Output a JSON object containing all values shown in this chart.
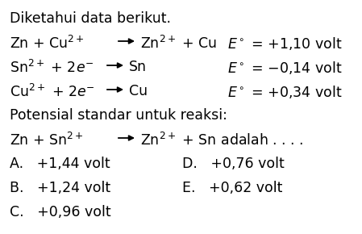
{
  "background_color": "#ffffff",
  "text_color": "#000000",
  "fontsize": 12.5,
  "line0": "Diketahui data berikut.",
  "line1_left": "Zn + Cu",
  "line1_mid": "Zn",
  "line1_mid2": " + Cu",
  "line1_right": "E° = +1,10 volt",
  "line2_left": "Sn",
  "line2_mid": "Sn",
  "line2_right": "E° = −0,14 volt",
  "line3_left": "Cu",
  "line3_mid": "Cu",
  "line3_right": "E° = +0,34 volt",
  "line4": "Potensial standar untuk reaksi:",
  "line5_left": "Zn + Sn",
  "line5_mid": "Zn",
  "line5_mid2": " + Sn adalah . . . .",
  "optA": "A.   +1,44 volt",
  "optB": "B.   +1,24 volt",
  "optC": "C.   +0,96 volt",
  "optD": "D.   +0,76 volt",
  "optE": "E.   +0,62 volt",
  "arrow_color": "#000000"
}
